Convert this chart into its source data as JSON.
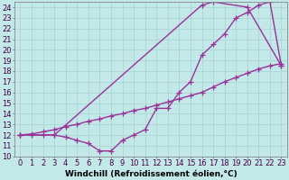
{
  "xlabel": "Windchill (Refroidissement éolien,°C)",
  "xlim": [
    -0.5,
    23.5
  ],
  "ylim": [
    10,
    24.5
  ],
  "background_color": "#c2e8e8",
  "line_color": "#993399",
  "grid_color": "#b0d8d8",
  "line1_x": [
    0,
    1,
    2,
    3,
    4,
    5,
    6,
    7,
    8,
    9,
    10,
    11,
    12,
    13,
    14,
    15,
    16,
    17,
    18,
    19,
    20,
    21,
    22,
    23
  ],
  "line1_y": [
    12,
    12,
    12,
    12,
    11.8,
    11.5,
    11.2,
    10.5,
    10.5,
    11.5,
    12,
    12.5,
    14.5,
    14.5,
    16,
    17,
    19.5,
    20.5,
    21.5,
    23,
    23.5,
    24.2,
    24.5,
    18.5
  ],
  "line2_x": [
    0,
    3,
    16,
    17,
    20,
    23
  ],
  "line2_y": [
    12,
    12,
    24.2,
    24.5,
    24,
    18.5
  ],
  "line3_x": [
    0,
    1,
    2,
    3,
    4,
    5,
    6,
    7,
    8,
    9,
    10,
    11,
    12,
    13,
    14,
    15,
    16,
    17,
    18,
    19,
    20,
    21,
    22,
    23
  ],
  "line3_y": [
    12,
    12.1,
    12.3,
    12.5,
    12.8,
    13.0,
    13.3,
    13.5,
    13.8,
    14.0,
    14.3,
    14.5,
    14.8,
    15.1,
    15.4,
    15.7,
    16.0,
    16.5,
    17.0,
    17.4,
    17.8,
    18.2,
    18.5,
    18.7
  ],
  "xtick_labels": [
    "0",
    "1",
    "2",
    "3",
    "4",
    "5",
    "6",
    "7",
    "8",
    "9",
    "10",
    "11",
    "12",
    "13",
    "14",
    "15",
    "16",
    "17",
    "18",
    "19",
    "20",
    "21",
    "22",
    "23"
  ],
  "ytick_labels": [
    "10",
    "11",
    "12",
    "13",
    "14",
    "15",
    "16",
    "17",
    "18",
    "19",
    "20",
    "21",
    "22",
    "23",
    "24"
  ],
  "marker": "+",
  "markersize": 4,
  "linewidth": 1.0,
  "xlabel_fontsize": 6.5,
  "tick_fontsize": 6.0
}
